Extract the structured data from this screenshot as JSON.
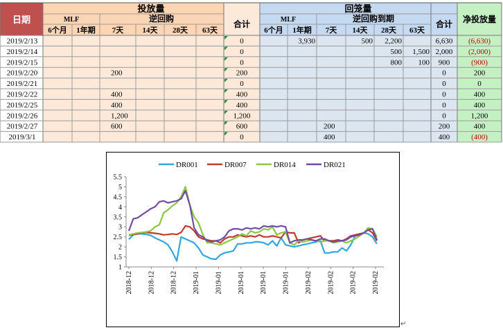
{
  "table": {
    "corner_label": "日期",
    "group_injection": "投放量",
    "group_withdrawal": "回笼量",
    "net_label": "净投放量",
    "sub_mlf": "MLF",
    "sub_reverse_repo": "逆回购",
    "sub_reverse_repo_maturity": "逆回购到期",
    "total_label": "合计",
    "injection_cols": [
      "6个月",
      "1年期",
      "7天",
      "14天",
      "28天",
      "63天"
    ],
    "withdrawal_cols": [
      "6个月",
      "1年期",
      "7天",
      "14天",
      "28天",
      "63天"
    ],
    "rows": [
      {
        "date": "2019/2/13",
        "inj": [
          "",
          "",
          "",
          "",
          "",
          ""
        ],
        "inj_total": "0",
        "wd": [
          "",
          "3,930",
          "",
          "500",
          "2,200",
          ""
        ],
        "wd_total": "6,630",
        "net": "(6,630)",
        "neg": true
      },
      {
        "date": "2019/2/14",
        "inj": [
          "",
          "",
          "",
          "",
          "",
          ""
        ],
        "inj_total": "0",
        "wd": [
          "",
          "",
          "",
          "",
          "500",
          "1,500"
        ],
        "wd_total": "2,000",
        "net": "(2,000)",
        "neg": true
      },
      {
        "date": "2019/2/15",
        "inj": [
          "",
          "",
          "",
          "",
          "",
          ""
        ],
        "inj_total": "0",
        "wd": [
          "",
          "",
          "",
          "",
          "800",
          "100"
        ],
        "wd_total": "900",
        "net": "(900)",
        "neg": true
      },
      {
        "date": "2019/2/20",
        "inj": [
          "",
          "",
          "200",
          "",
          "",
          ""
        ],
        "inj_total": "200",
        "wd": [
          "",
          "",
          "",
          "",
          "",
          ""
        ],
        "wd_total": "0",
        "net": "200",
        "neg": false
      },
      {
        "date": "2019/2/21",
        "inj": [
          "",
          "",
          "",
          "",
          "",
          ""
        ],
        "inj_total": "0",
        "wd": [
          "",
          "",
          "",
          "",
          "",
          ""
        ],
        "wd_total": "0",
        "net": "0",
        "neg": false
      },
      {
        "date": "2019/2/22",
        "inj": [
          "",
          "",
          "400",
          "",
          "",
          ""
        ],
        "inj_total": "400",
        "wd": [
          "",
          "",
          "",
          "",
          "",
          ""
        ],
        "wd_total": "0",
        "net": "400",
        "neg": false
      },
      {
        "date": "2019/2/25",
        "inj": [
          "",
          "",
          "400",
          "",
          "",
          ""
        ],
        "inj_total": "400",
        "wd": [
          "",
          "",
          "",
          "",
          "",
          ""
        ],
        "wd_total": "0",
        "net": "400",
        "neg": false
      },
      {
        "date": "2019/2/26",
        "inj": [
          "",
          "",
          "1,200",
          "",
          "",
          ""
        ],
        "inj_total": "1,200",
        "wd": [
          "",
          "",
          "",
          "",
          "",
          ""
        ],
        "wd_total": "0",
        "net": "1,200",
        "neg": false
      },
      {
        "date": "2019/2/27",
        "inj": [
          "",
          "",
          "600",
          "",
          "",
          ""
        ],
        "inj_total": "600",
        "wd": [
          "",
          "",
          "200",
          "",
          "",
          ""
        ],
        "wd_total": "200",
        "net": "400",
        "neg": false
      },
      {
        "date": "2019/3/1",
        "inj": [
          "",
          "",
          "",
          "",
          "",
          ""
        ],
        "inj_total": "0",
        "wd": [
          "",
          "",
          "400",
          "",
          "",
          ""
        ],
        "wd_total": "400",
        "net": "(400)",
        "neg": true
      }
    ]
  },
  "colors": {
    "header_injection": "#fcd5b4",
    "body_injection": "#fde9d9",
    "header_withdrawal": "#c5d9f1",
    "body_withdrawal": "#dce6f1",
    "net_fill": "#c4f0c4",
    "date_header_fill": "#c0504d",
    "negative_text": "#c00000",
    "grid_line": "#9a9a9a"
  },
  "chart_data": {
    "type": "line",
    "title": "",
    "xlabel": "",
    "ylabel": "",
    "ylim": [
      1,
      5.5
    ],
    "yticks": [
      "1",
      "1.5",
      "2",
      "2.5",
      "3",
      "3.5",
      "4",
      "4.5",
      "5",
      "5.5"
    ],
    "x_tick_labels": [
      "2018-12",
      "2018-12",
      "2018-12",
      "2019-01",
      "2019-01",
      "2019-01",
      "2019-01",
      "2019-01",
      "2019-02",
      "2019-02",
      "2019-02",
      "2019-02"
    ],
    "legend_position": "top",
    "series": [
      {
        "name": "DR001",
        "color": "#2ea7e0",
        "values": [
          2.38,
          2.6,
          2.65,
          2.65,
          2.62,
          2.58,
          2.45,
          2.35,
          2.25,
          2.1,
          1.75,
          1.3,
          2.5,
          2.4,
          2.3,
          2.2,
          1.95,
          1.6,
          1.5,
          1.4,
          1.38,
          1.6,
          1.7,
          1.75,
          1.8,
          2.15,
          2.15,
          2.2,
          2.2,
          2.25,
          2.25,
          2.2,
          2.1,
          2.3,
          2.05,
          2.45,
          2.1,
          2.05,
          2.0,
          2.05,
          2.1,
          2.15,
          2.2,
          2.25,
          2.3,
          1.7,
          1.7,
          1.75,
          1.75,
          1.95,
          1.8,
          2.1,
          2.55,
          2.6,
          2.7,
          2.65,
          2.5,
          2.15
        ]
      },
      {
        "name": "DR007",
        "color": "#c0392b",
        "values": [
          2.58,
          2.62,
          2.65,
          2.7,
          2.72,
          2.7,
          2.68,
          2.65,
          2.6,
          2.62,
          2.65,
          2.62,
          2.72,
          3.05,
          3.0,
          2.8,
          2.5,
          2.4,
          2.35,
          2.3,
          2.3,
          2.2,
          2.4,
          2.5,
          2.5,
          2.6,
          2.55,
          2.5,
          2.55,
          2.5,
          2.6,
          2.5,
          2.5,
          2.55,
          2.5,
          2.45,
          2.75,
          2.7,
          2.7,
          2.2,
          2.35,
          2.4,
          2.45,
          2.5,
          2.55,
          2.3,
          2.3,
          2.3,
          2.35,
          2.3,
          2.4,
          2.55,
          2.6,
          2.65,
          2.7,
          2.85,
          2.7,
          2.3
        ]
      },
      {
        "name": "DR014",
        "color": "#8dc63f",
        "values": [
          2.6,
          2.65,
          2.7,
          2.72,
          2.75,
          2.8,
          3.0,
          3.1,
          3.7,
          3.85,
          4.05,
          4.2,
          4.5,
          5.0,
          4.1,
          3.5,
          3.2,
          2.6,
          2.2,
          2.2,
          2.15,
          2.1,
          2.2,
          2.3,
          2.4,
          2.5,
          2.65,
          2.55,
          2.8,
          2.7,
          2.75,
          2.9,
          2.85,
          3.0,
          2.6,
          2.7,
          2.75,
          2.2,
          2.1,
          2.3,
          2.25,
          2.3,
          2.35,
          2.3,
          2.25,
          2.3,
          2.3,
          2.2,
          2.25,
          2.3,
          2.2,
          2.3,
          2.4,
          2.55,
          2.7,
          2.95,
          2.9,
          2.5
        ]
      },
      {
        "name": "DR021",
        "color": "#6f4ca8",
        "values": [
          2.8,
          3.4,
          3.45,
          3.6,
          3.75,
          3.9,
          4.0,
          4.25,
          4.3,
          4.2,
          4.25,
          4.3,
          4.4,
          4.8,
          4.1,
          2.95,
          2.6,
          2.5,
          2.3,
          2.25,
          2.3,
          2.35,
          2.5,
          2.8,
          2.9,
          2.9,
          2.85,
          2.95,
          2.9,
          2.95,
          2.9,
          3.05,
          3.0,
          3.05,
          3.0,
          3.05,
          3.0,
          2.2,
          2.3,
          2.35,
          2.35,
          2.4,
          2.35,
          2.3,
          2.4,
          2.4,
          2.3,
          2.25,
          2.3,
          2.3,
          2.35,
          2.5,
          2.55,
          2.6,
          2.7,
          2.85,
          2.9,
          2.35
        ]
      }
    ]
  }
}
